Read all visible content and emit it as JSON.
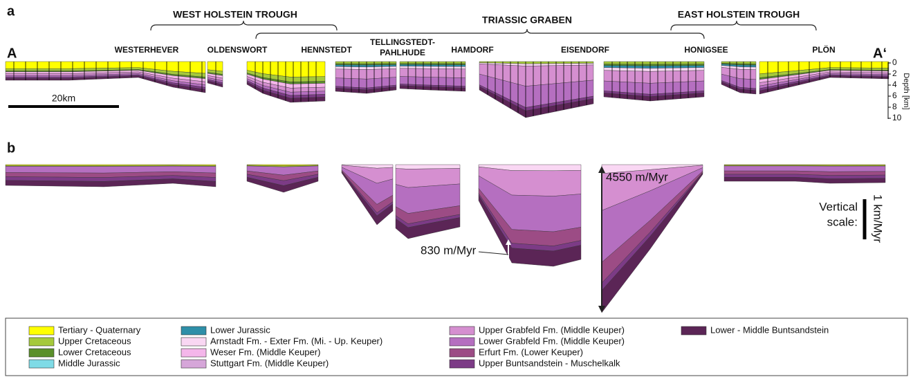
{
  "panel_a": {
    "label": "a",
    "groups": [
      "WEST HOLSTEIN TROUGH",
      "TRIASSIC GRABEN",
      "EAST HOLSTEIN TROUGH"
    ],
    "profile_start": "A",
    "profile_end": "A‘",
    "locations": [
      [
        "WESTERHEVER"
      ],
      [
        "OLDENSWORT"
      ],
      [
        "HENNSTEDT"
      ],
      [
        "TELLINGSTEDT-",
        "PAHLHUDE"
      ],
      [
        "HAMDORF"
      ],
      [
        "EISENDORF"
      ],
      [
        "HONIGSEE"
      ],
      [
        "PLÖN"
      ]
    ],
    "scale_bar": "20km",
    "depth_axis": {
      "title": "Depth [km]",
      "ticks": [
        "0",
        "2",
        "4",
        "6",
        "8",
        "10"
      ]
    }
  },
  "panel_b": {
    "label": "b",
    "annotations": [
      "4550 m/Myr",
      "830 m/Myr"
    ],
    "vertical_scale": {
      "title": [
        "Vertical",
        "scale:"
      ],
      "unit": "1 km/Myr"
    }
  },
  "legend": [
    {
      "label": "Tertiary - Quaternary",
      "color": "#ffff00"
    },
    {
      "label": "Upper Cretaceous",
      "color": "#a5c93b"
    },
    {
      "label": "Lower Cretaceous",
      "color": "#5a8f2a"
    },
    {
      "label": "Middle Jurassic",
      "color": "#7fdbe6"
    },
    {
      "label": "Lower Jurassic",
      "color": "#2e8fa8"
    },
    {
      "label": "Arnstadt Fm. - Exter Fm. (Mi. - Up. Keuper)",
      "color": "#f9d7f3"
    },
    {
      "label": "Weser Fm. (Middle Keuper)",
      "color": "#f4b6ea"
    },
    {
      "label": "Stuttgart Fm. (Middle Keuper)",
      "color": "#d6a6d9"
    },
    {
      "label": "Upper Grabfeld Fm. (Middle Keuper)",
      "color": "#d58fd0"
    },
    {
      "label": "Lower Grabfeld Fm. (Middle Keuper)",
      "color": "#b56fc0"
    },
    {
      "label": "Erfurt Fm. (Lower Keuper)",
      "color": "#9c4c85"
    },
    {
      "label": "Upper Buntsandstein - Muschelkalk",
      "color": "#7c3b86"
    },
    {
      "label": "Lower - Middle Buntsandstein",
      "color": "#5b2556"
    }
  ]
}
